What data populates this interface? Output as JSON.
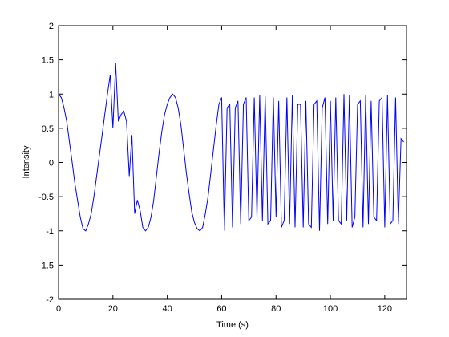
{
  "chart_data": {
    "type": "line",
    "title": "",
    "xlabel": "Time (s)",
    "ylabel": "Intensity",
    "xlim": [
      0,
      128
    ],
    "ylim": [
      -2,
      2
    ],
    "xticks": [
      "0",
      "20",
      "40",
      "60",
      "80",
      "100",
      "120"
    ],
    "yticks": [
      "2",
      "1.5",
      "1",
      "0.5",
      "0",
      "-0.5",
      "-1",
      "-1.5",
      "-2"
    ],
    "grid": false,
    "legend": "none",
    "colors": {
      "line": "#0000ff",
      "axes": "#000000",
      "background": "#ffffff"
    },
    "series": [
      {
        "x": [
          0,
          1,
          2,
          3,
          4,
          5,
          6,
          7,
          8,
          9,
          10,
          11,
          12,
          13,
          14,
          15,
          16,
          17,
          18,
          19,
          20,
          21,
          22,
          23,
          24,
          25,
          26,
          27,
          28,
          29,
          30,
          31,
          32,
          33,
          34,
          35,
          36,
          37,
          38,
          39,
          40,
          41,
          42,
          43,
          44,
          45,
          46,
          47,
          48,
          49,
          50,
          51,
          52,
          53,
          54,
          55,
          56,
          57,
          58,
          59,
          60,
          61,
          62,
          63,
          64,
          65,
          66,
          67,
          68,
          69,
          70,
          71,
          72,
          73,
          74,
          75,
          76,
          77,
          78,
          79,
          80,
          81,
          82,
          83,
          84,
          85,
          86,
          87,
          88,
          89,
          90,
          91,
          92,
          93,
          94,
          95,
          96,
          97,
          98,
          99,
          100,
          101,
          102,
          103,
          104,
          105,
          106,
          107,
          108,
          109,
          110,
          111,
          112,
          113,
          114,
          115,
          116,
          117,
          118,
          119,
          120,
          121,
          122,
          123,
          124,
          125,
          126,
          127
        ],
        "y": [
          1.0,
          0.95,
          0.8,
          0.6,
          0.3,
          0.0,
          -0.3,
          -0.55,
          -0.8,
          -0.97,
          -1.0,
          -0.9,
          -0.75,
          -0.5,
          -0.2,
          0.1,
          0.4,
          0.7,
          1.0,
          1.28,
          0.5,
          1.45,
          0.6,
          0.7,
          0.75,
          0.6,
          -0.2,
          0.4,
          -0.75,
          -0.55,
          -0.7,
          -0.95,
          -1.0,
          -0.95,
          -0.8,
          -0.55,
          -0.2,
          0.15,
          0.45,
          0.7,
          0.85,
          0.95,
          1.0,
          0.95,
          0.8,
          0.55,
          0.2,
          -0.15,
          -0.45,
          -0.72,
          -0.88,
          -0.97,
          -1.0,
          -0.95,
          -0.75,
          -0.5,
          -0.15,
          0.2,
          0.55,
          0.85,
          0.95,
          -1.0,
          0.8,
          0.85,
          -0.95,
          0.8,
          0.9,
          -0.9,
          0.85,
          0.95,
          -0.85,
          -0.8,
          0.95,
          -0.8,
          0.98,
          -0.85,
          0.97,
          -0.9,
          -0.85,
          0.95,
          -0.8,
          0.9,
          -0.95,
          -0.85,
          0.95,
          -0.9,
          0.98,
          -0.95,
          0.85,
          0.85,
          -0.95,
          0.9,
          -0.9,
          -0.95,
          0.85,
          0.9,
          -1.0,
          0.8,
          0.95,
          -0.9,
          0.9,
          -0.85,
          0.95,
          -0.85,
          -0.9,
          1.0,
          -0.85,
          0.98,
          -0.95,
          -0.8,
          0.85,
          0.9,
          -0.95,
          0.98,
          -0.9,
          0.9,
          -0.8,
          -0.85,
          0.9,
          0.95,
          -0.95,
          0.98,
          -0.9,
          -0.85,
          0.95,
          -0.9,
          0.35,
          0.3
        ]
      }
    ]
  }
}
